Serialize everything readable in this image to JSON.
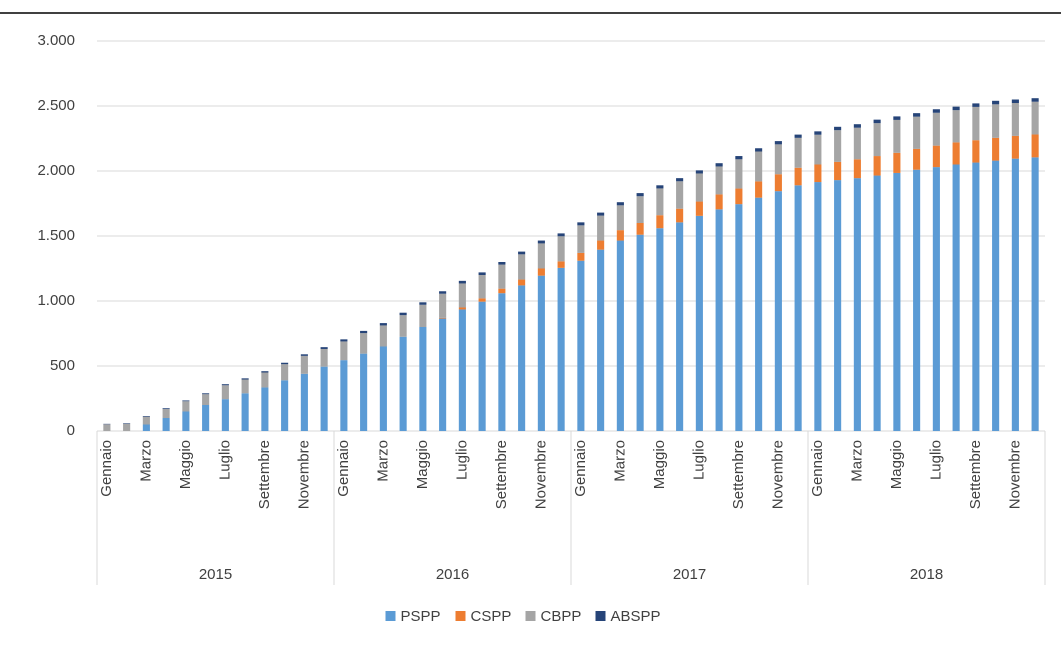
{
  "chart_data": {
    "type": "stacked_bar",
    "categories": [
      "Gennaio",
      null,
      "Marzo",
      null,
      "Maggio",
      null,
      "Luglio",
      null,
      "Settembre",
      null,
      "Novembre",
      null,
      "Gennaio",
      null,
      "Marzo",
      null,
      "Maggio",
      null,
      "Luglio",
      null,
      "Settembre",
      null,
      "Novembre",
      null,
      "Gennaio",
      null,
      "Marzo",
      null,
      "Maggio",
      null,
      "Luglio",
      null,
      "Settembre",
      null,
      "Novembre",
      null,
      "Gennaio",
      null,
      "Marzo",
      null,
      "Maggio",
      null,
      "Luglio",
      null,
      "Settembre",
      null,
      "Novembre",
      null
    ],
    "groups": [
      "2015",
      "2016",
      "2017",
      "2018"
    ],
    "series": [
      {
        "name": "PSPP",
        "color": "#5b9bd5",
        "values": [
          0,
          0,
          50,
          100,
          150,
          200,
          245,
          290,
          335,
          390,
          440,
          495,
          545,
          595,
          650,
          725,
          800,
          865,
          935,
          995,
          1060,
          1120,
          1195,
          1255,
          1310,
          1395,
          1465,
          1510,
          1560,
          1605,
          1655,
          1705,
          1745,
          1795,
          1845,
          1890,
          1915,
          1930,
          1945,
          1965,
          1985,
          2010,
          2030,
          2050,
          2065,
          2080,
          2095,
          2105
        ]
      },
      {
        "name": "CSPP",
        "color": "#ed7d31",
        "values": [
          0,
          0,
          0,
          0,
          0,
          0,
          0,
          0,
          0,
          0,
          0,
          0,
          0,
          0,
          0,
          0,
          0,
          5,
          15,
          25,
          35,
          45,
          55,
          50,
          60,
          70,
          80,
          90,
          100,
          105,
          110,
          115,
          120,
          125,
          130,
          135,
          135,
          140,
          145,
          150,
          155,
          160,
          165,
          170,
          172,
          175,
          175,
          176
        ]
      },
      {
        "name": "CBPP",
        "color": "#a5a5a5",
        "values": [
          52,
          56,
          60,
          69,
          79,
          83,
          107,
          106,
          115,
          124,
          138,
          136,
          144,
          158,
          162,
          166,
          171,
          186,
          185,
          180,
          185,
          194,
          193,
          193,
          212,
          192,
          191,
          206,
          206,
          211,
          216,
          215,
          225,
          230,
          230,
          230,
          229,
          244,
          243,
          253,
          253,
          248,
          253,
          248,
          256,
          258,
          253,
          252
        ]
      },
      {
        "name": "ABSPP",
        "color": "#264478",
        "values": [
          3,
          4,
          5,
          6,
          6,
          7,
          8,
          9,
          10,
          11,
          12,
          14,
          16,
          17,
          18,
          19,
          19,
          19,
          20,
          20,
          20,
          21,
          22,
          22,
          23,
          23,
          24,
          24,
          24,
          24,
          24,
          25,
          25,
          25,
          25,
          25,
          26,
          26,
          27,
          27,
          27,
          27,
          27,
          27,
          27,
          27,
          27,
          27
        ]
      }
    ],
    "ylim": [
      0,
      3000
    ],
    "yticks": [
      0,
      500,
      {
        "value": 1000,
        "label": "1.000"
      },
      {
        "value": 1500,
        "label": "1.500"
      },
      {
        "value": 2000,
        "label": "2.000"
      },
      {
        "value": 2500,
        "label": "2.500"
      },
      {
        "value": 3000,
        "label": "3.000"
      }
    ],
    "grid": true
  }
}
